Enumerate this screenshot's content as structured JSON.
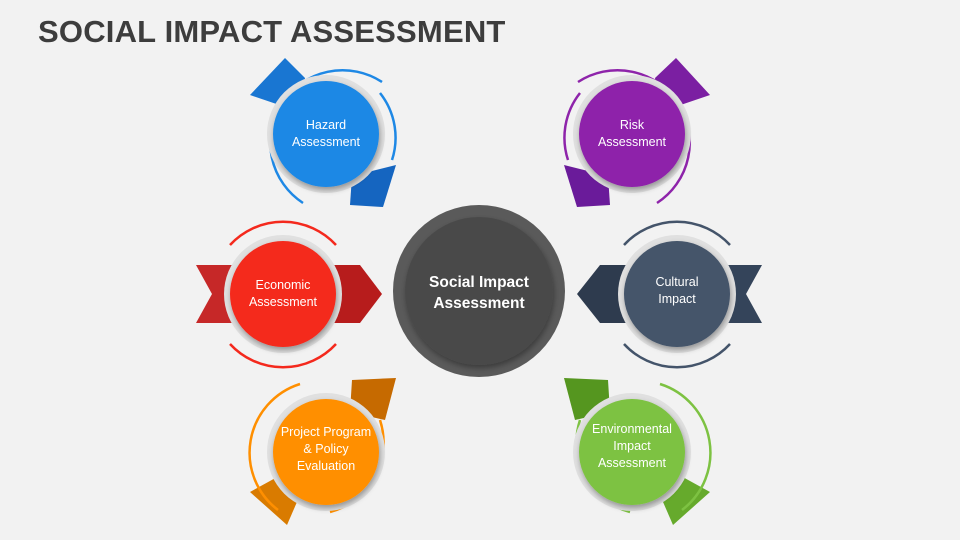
{
  "title": "SOCIAL IMPACT ASSESSMENT",
  "center": {
    "lines": [
      "Social Impact",
      "Assessment"
    ],
    "color": "#4a4a4a"
  },
  "nodes": [
    {
      "id": "hazard",
      "lines": [
        "Hazard",
        "Assessment"
      ],
      "color": "#1e88e5",
      "dark": "#1565c0"
    },
    {
      "id": "risk",
      "lines": [
        "Risk",
        "Assessment"
      ],
      "color": "#8e24aa",
      "dark": "#6a1b9a"
    },
    {
      "id": "economic",
      "lines": [
        "Economic",
        "Assessment"
      ],
      "color": "#f4291d",
      "dark": "#b71c1c"
    },
    {
      "id": "cultural",
      "lines": [
        "Cultural",
        "Impact"
      ],
      "color": "#44546a",
      "dark": "#2e3b4e"
    },
    {
      "id": "project",
      "lines": [
        "Project Program",
        "& Policy",
        "Evaluation"
      ],
      "color": "#ff8f00",
      "dark": "#c66a00"
    },
    {
      "id": "environmental",
      "lines": [
        "Environmental",
        "Impact",
        "Assessment"
      ],
      "color": "#7dc242",
      "dark": "#55961f"
    }
  ]
}
